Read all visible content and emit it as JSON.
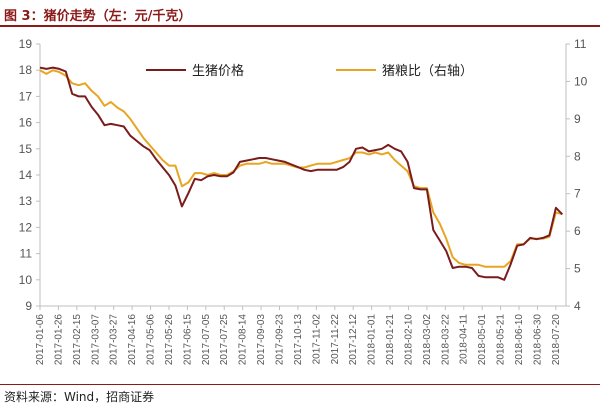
{
  "header": {
    "figure_title": "图 3：猪价走势（左：元/千克）"
  },
  "footer": {
    "source": "资料来源：Wind，招商证券"
  },
  "colors": {
    "pig_price": "#7a1c1c",
    "ratio": "#e8a522",
    "title": "#8b1a1a"
  },
  "chart_data": {
    "type": "line",
    "ylim_left": [
      9,
      19
    ],
    "ylim_right": [
      4,
      11
    ],
    "yticks_left": [
      "9",
      "10",
      "11",
      "12",
      "13",
      "14",
      "15",
      "16",
      "17",
      "18",
      "19"
    ],
    "yticks_right": [
      "4",
      "5",
      "6",
      "7",
      "8",
      "9",
      "10",
      "11"
    ],
    "x_tick_labels": [
      "2017-01-06",
      "2017-01-26",
      "2017-02-15",
      "2017-03-07",
      "2017-03-27",
      "2017-04-16",
      "2017-05-06",
      "2017-05-26",
      "2017-06-15",
      "2017-07-05",
      "2017-07-25",
      "2017-08-14",
      "2017-09-03",
      "2017-09-23",
      "2017-10-13",
      "2017-11-02",
      "2017-11-22",
      "2017-12-12",
      "2018-01-01",
      "2018-01-21",
      "2018-02-10",
      "2018-03-02",
      "2018-03-22",
      "2018-04-11",
      "2018-05-01",
      "2018-05-21",
      "2018-06-10",
      "2018-06-30",
      "2018-07-20"
    ],
    "legend_position": "top",
    "series": [
      {
        "name": "生猪价格",
        "axis": "left",
        "x": [
          "2017-01-06",
          "2017-01-13",
          "2017-01-20",
          "2017-01-27",
          "2017-02-03",
          "2017-02-10",
          "2017-02-17",
          "2017-02-24",
          "2017-03-03",
          "2017-03-10",
          "2017-03-17",
          "2017-03-24",
          "2017-03-31",
          "2017-04-07",
          "2017-04-14",
          "2017-04-21",
          "2017-04-28",
          "2017-05-05",
          "2017-05-12",
          "2017-05-19",
          "2017-05-26",
          "2017-06-02",
          "2017-06-09",
          "2017-06-16",
          "2017-06-23",
          "2017-06-30",
          "2017-07-07",
          "2017-07-14",
          "2017-07-21",
          "2017-07-28",
          "2017-08-04",
          "2017-08-11",
          "2017-08-18",
          "2017-08-25",
          "2017-09-01",
          "2017-09-08",
          "2017-09-15",
          "2017-09-22",
          "2017-09-29",
          "2017-10-06",
          "2017-10-13",
          "2017-10-20",
          "2017-10-27",
          "2017-11-03",
          "2017-11-10",
          "2017-11-17",
          "2017-11-24",
          "2017-12-01",
          "2017-12-08",
          "2017-12-15",
          "2017-12-22",
          "2017-12-29",
          "2018-01-05",
          "2018-01-12",
          "2018-01-19",
          "2018-01-26",
          "2018-02-02",
          "2018-02-09",
          "2018-02-16",
          "2018-02-23",
          "2018-03-02",
          "2018-03-09",
          "2018-03-16",
          "2018-03-23",
          "2018-03-30",
          "2018-04-06",
          "2018-04-13",
          "2018-04-20",
          "2018-04-27",
          "2018-05-04",
          "2018-05-11",
          "2018-05-18",
          "2018-05-25",
          "2018-06-01",
          "2018-06-08",
          "2018-06-15",
          "2018-06-22",
          "2018-06-29",
          "2018-07-06",
          "2018-07-13",
          "2018-07-20",
          "2018-07-27"
        ],
        "values": [
          18.1,
          18.05,
          18.1,
          18.05,
          17.95,
          17.1,
          17.0,
          17.0,
          16.6,
          16.3,
          15.9,
          15.95,
          15.9,
          15.85,
          15.5,
          15.3,
          15.1,
          14.95,
          14.6,
          14.3,
          14.0,
          13.6,
          12.8,
          13.3,
          13.85,
          13.8,
          13.95,
          14.0,
          13.95,
          13.95,
          14.1,
          14.5,
          14.55,
          14.6,
          14.65,
          14.65,
          14.6,
          14.55,
          14.5,
          14.4,
          14.3,
          14.2,
          14.15,
          14.2,
          14.2,
          14.2,
          14.2,
          14.3,
          14.5,
          15.0,
          15.05,
          14.9,
          14.95,
          15.0,
          15.15,
          15.0,
          14.9,
          14.5,
          13.5,
          13.45,
          13.45,
          11.9,
          11.5,
          11.1,
          10.45,
          10.5,
          10.5,
          10.45,
          10.15,
          10.1,
          10.1,
          10.1,
          10.0,
          10.6,
          11.3,
          11.35,
          11.6,
          11.55,
          11.6,
          11.7,
          12.75,
          12.5
        ]
      },
      {
        "name": "猪粮比（右轴）",
        "axis": "right",
        "x": [
          "2017-01-06",
          "2017-01-13",
          "2017-01-20",
          "2017-01-27",
          "2017-02-03",
          "2017-02-10",
          "2017-02-17",
          "2017-02-24",
          "2017-03-03",
          "2017-03-10",
          "2017-03-17",
          "2017-03-24",
          "2017-03-31",
          "2017-04-07",
          "2017-04-14",
          "2017-04-21",
          "2017-04-28",
          "2017-05-05",
          "2017-05-12",
          "2017-05-19",
          "2017-05-26",
          "2017-06-02",
          "2017-06-09",
          "2017-06-16",
          "2017-06-23",
          "2017-06-30",
          "2017-07-07",
          "2017-07-14",
          "2017-07-21",
          "2017-07-28",
          "2017-08-04",
          "2017-08-11",
          "2017-08-18",
          "2017-08-25",
          "2017-09-01",
          "2017-09-08",
          "2017-09-15",
          "2017-09-22",
          "2017-09-29",
          "2017-10-06",
          "2017-10-13",
          "2017-10-20",
          "2017-10-27",
          "2017-11-03",
          "2017-11-10",
          "2017-11-17",
          "2017-11-24",
          "2017-12-01",
          "2017-12-08",
          "2017-12-15",
          "2017-12-22",
          "2017-12-29",
          "2018-01-05",
          "2018-01-12",
          "2018-01-19",
          "2018-01-26",
          "2018-02-02",
          "2018-02-09",
          "2018-02-16",
          "2018-02-23",
          "2018-03-02",
          "2018-03-09",
          "2018-03-16",
          "2018-03-23",
          "2018-03-30",
          "2018-04-06",
          "2018-04-13",
          "2018-04-20",
          "2018-04-27",
          "2018-05-04",
          "2018-05-11",
          "2018-05-18",
          "2018-05-25",
          "2018-06-01",
          "2018-06-08",
          "2018-06-15",
          "2018-06-22",
          "2018-06-29",
          "2018-07-06",
          "2018-07-13",
          "2018-07-20",
          "2018-07-27"
        ],
        "values": [
          10.3,
          10.2,
          10.3,
          10.25,
          10.15,
          9.95,
          9.9,
          9.95,
          9.75,
          9.6,
          9.35,
          9.45,
          9.3,
          9.2,
          9.0,
          8.75,
          8.5,
          8.3,
          8.1,
          7.9,
          7.75,
          7.75,
          7.2,
          7.3,
          7.55,
          7.55,
          7.5,
          7.55,
          7.5,
          7.5,
          7.6,
          7.75,
          7.8,
          7.8,
          7.8,
          7.85,
          7.8,
          7.8,
          7.8,
          7.75,
          7.7,
          7.7,
          7.75,
          7.8,
          7.8,
          7.8,
          7.85,
          7.9,
          7.95,
          8.1,
          8.1,
          8.05,
          8.1,
          8.05,
          8.1,
          7.9,
          7.75,
          7.6,
          7.2,
          7.15,
          7.15,
          6.5,
          6.2,
          5.8,
          5.3,
          5.15,
          5.1,
          5.1,
          5.1,
          5.05,
          5.05,
          5.05,
          5.05,
          5.2,
          5.65,
          5.65,
          5.8,
          5.8,
          5.8,
          5.85,
          6.5,
          6.45
        ]
      }
    ]
  }
}
